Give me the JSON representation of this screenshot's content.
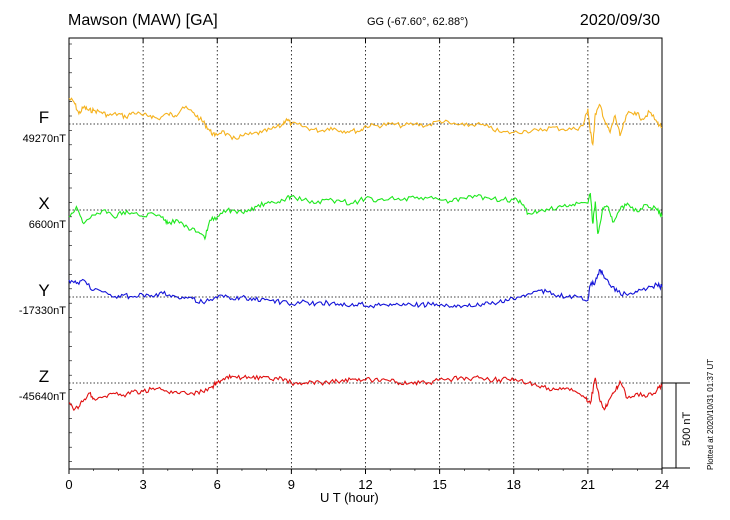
{
  "header": {
    "station": "Mawson (MAW)  [GA]",
    "coords": "GG (-67.60°,  62.88°)",
    "date": "2020/09/30"
  },
  "plotted_note": "Plotted at 2020/10/31 01:37  UT",
  "chart_data": {
    "type": "line",
    "title": "Mawson (MAW)  [GA]",
    "xlabel": "U T (hour)",
    "xlim": [
      0,
      24
    ],
    "xticks": [
      "0",
      "3",
      "6",
      "9",
      "12",
      "15",
      "18",
      "21",
      "24"
    ],
    "grid": true,
    "scale_bar": {
      "value": 500,
      "label": "500 nT"
    },
    "series": [
      {
        "name": "F",
        "baseline_label": "49270nT",
        "baseline": 49270,
        "color": "#f5b21e",
        "points": [
          [
            0,
            49420
          ],
          [
            0.2,
            49400
          ],
          [
            0.4,
            49330
          ],
          [
            0.6,
            49370
          ],
          [
            0.8,
            49350
          ],
          [
            1,
            49350
          ],
          [
            1.3,
            49340
          ],
          [
            1.6,
            49320
          ],
          [
            2,
            49330
          ],
          [
            2.3,
            49310
          ],
          [
            2.6,
            49340
          ],
          [
            3,
            49320
          ],
          [
            3.3,
            49320
          ],
          [
            3.6,
            49300
          ],
          [
            4,
            49330
          ],
          [
            4.3,
            49320
          ],
          [
            4.6,
            49370
          ],
          [
            5,
            49340
          ],
          [
            5.3,
            49300
          ],
          [
            5.5,
            49270
          ],
          [
            5.7,
            49230
          ],
          [
            5.9,
            49200
          ],
          [
            6.2,
            49230
          ],
          [
            6.6,
            49180
          ],
          [
            7,
            49200
          ],
          [
            7.4,
            49210
          ],
          [
            7.8,
            49220
          ],
          [
            8.2,
            49240
          ],
          [
            8.6,
            49260
          ],
          [
            8.8,
            49300
          ],
          [
            9,
            49270
          ],
          [
            9.4,
            49260
          ],
          [
            9.8,
            49240
          ],
          [
            10.2,
            49230
          ],
          [
            10.6,
            49250
          ],
          [
            11,
            49230
          ],
          [
            11.4,
            49230
          ],
          [
            11.8,
            49230
          ],
          [
            12,
            49260
          ],
          [
            12.5,
            49260
          ],
          [
            13,
            49270
          ],
          [
            13.5,
            49260
          ],
          [
            14,
            49270
          ],
          [
            14.5,
            49260
          ],
          [
            15,
            49290
          ],
          [
            15.5,
            49270
          ],
          [
            16,
            49260
          ],
          [
            16.5,
            49270
          ],
          [
            17,
            49250
          ],
          [
            17.5,
            49220
          ],
          [
            18,
            49220
          ],
          [
            18.5,
            49230
          ],
          [
            19,
            49230
          ],
          [
            19.5,
            49250
          ],
          [
            20,
            49240
          ],
          [
            20.5,
            49240
          ],
          [
            20.8,
            49260
          ],
          [
            21,
            49360
          ],
          [
            21.1,
            49220
          ],
          [
            21.2,
            49150
          ],
          [
            21.3,
            49330
          ],
          [
            21.5,
            49380
          ],
          [
            21.7,
            49280
          ],
          [
            21.9,
            49220
          ],
          [
            22.1,
            49320
          ],
          [
            22.3,
            49200
          ],
          [
            22.6,
            49330
          ],
          [
            22.9,
            49340
          ],
          [
            23.2,
            49300
          ],
          [
            23.5,
            49340
          ],
          [
            23.8,
            49280
          ],
          [
            24,
            49250
          ]
        ]
      },
      {
        "name": "X",
        "baseline_label": "6600nT",
        "baseline": 6600,
        "color": "#1ee81e",
        "points": [
          [
            0,
            6560
          ],
          [
            0.3,
            6620
          ],
          [
            0.6,
            6520
          ],
          [
            1,
            6570
          ],
          [
            1.4,
            6600
          ],
          [
            1.8,
            6560
          ],
          [
            2.2,
            6590
          ],
          [
            2.6,
            6580
          ],
          [
            3,
            6560
          ],
          [
            3.4,
            6580
          ],
          [
            3.8,
            6560
          ],
          [
            4,
            6520
          ],
          [
            4.4,
            6540
          ],
          [
            4.8,
            6500
          ],
          [
            5.2,
            6470
          ],
          [
            5.5,
            6430
          ],
          [
            5.7,
            6540
          ],
          [
            6,
            6560
          ],
          [
            6.4,
            6600
          ],
          [
            6.8,
            6580
          ],
          [
            7.2,
            6590
          ],
          [
            7.6,
            6620
          ],
          [
            8,
            6640
          ],
          [
            8.4,
            6640
          ],
          [
            8.8,
            6670
          ],
          [
            9,
            6680
          ],
          [
            9.5,
            6660
          ],
          [
            10,
            6640
          ],
          [
            10.5,
            6660
          ],
          [
            11,
            6650
          ],
          [
            11.5,
            6640
          ],
          [
            12,
            6670
          ],
          [
            12.5,
            6660
          ],
          [
            13,
            6670
          ],
          [
            13.5,
            6660
          ],
          [
            14,
            6670
          ],
          [
            14.5,
            6670
          ],
          [
            15,
            6660
          ],
          [
            15.5,
            6650
          ],
          [
            16,
            6670
          ],
          [
            16.5,
            6680
          ],
          [
            17,
            6670
          ],
          [
            17.5,
            6660
          ],
          [
            18,
            6660
          ],
          [
            18.3,
            6640
          ],
          [
            18.6,
            6580
          ],
          [
            19,
            6590
          ],
          [
            19.4,
            6600
          ],
          [
            19.8,
            6620
          ],
          [
            20.2,
            6620
          ],
          [
            20.6,
            6640
          ],
          [
            21,
            6640
          ],
          [
            21.1,
            6700
          ],
          [
            21.2,
            6520
          ],
          [
            21.3,
            6650
          ],
          [
            21.4,
            6460
          ],
          [
            21.6,
            6610
          ],
          [
            21.8,
            6620
          ],
          [
            22.0,
            6530
          ],
          [
            22.3,
            6600
          ],
          [
            22.6,
            6640
          ],
          [
            23,
            6590
          ],
          [
            23.4,
            6630
          ],
          [
            23.8,
            6600
          ],
          [
            24,
            6560
          ]
        ]
      },
      {
        "name": "Y",
        "baseline_label": "-17330nT",
        "baseline": -17330,
        "color": "#1414d8",
        "points": [
          [
            0,
            -17230
          ],
          [
            0.3,
            -17250
          ],
          [
            0.6,
            -17230
          ],
          [
            1,
            -17290
          ],
          [
            1.4,
            -17300
          ],
          [
            1.8,
            -17330
          ],
          [
            2.2,
            -17320
          ],
          [
            2.6,
            -17330
          ],
          [
            3,
            -17320
          ],
          [
            3.4,
            -17330
          ],
          [
            3.8,
            -17310
          ],
          [
            4.2,
            -17320
          ],
          [
            4.6,
            -17330
          ],
          [
            5,
            -17340
          ],
          [
            5.4,
            -17360
          ],
          [
            5.8,
            -17350
          ],
          [
            6.2,
            -17320
          ],
          [
            6.6,
            -17340
          ],
          [
            7,
            -17330
          ],
          [
            7.4,
            -17350
          ],
          [
            7.8,
            -17340
          ],
          [
            8.2,
            -17350
          ],
          [
            8.6,
            -17360
          ],
          [
            9,
            -17370
          ],
          [
            9.4,
            -17360
          ],
          [
            9.8,
            -17370
          ],
          [
            10.2,
            -17360
          ],
          [
            10.6,
            -17370
          ],
          [
            11,
            -17370
          ],
          [
            11.4,
            -17380
          ],
          [
            11.8,
            -17370
          ],
          [
            12.2,
            -17380
          ],
          [
            12.6,
            -17380
          ],
          [
            13,
            -17370
          ],
          [
            13.4,
            -17380
          ],
          [
            13.8,
            -17370
          ],
          [
            14.2,
            -17380
          ],
          [
            14.6,
            -17370
          ],
          [
            15,
            -17380
          ],
          [
            15.4,
            -17390
          ],
          [
            15.8,
            -17380
          ],
          [
            16.2,
            -17370
          ],
          [
            16.6,
            -17380
          ],
          [
            17,
            -17370
          ],
          [
            17.4,
            -17360
          ],
          [
            17.8,
            -17350
          ],
          [
            18.2,
            -17330
          ],
          [
            18.6,
            -17310
          ],
          [
            19,
            -17290
          ],
          [
            19.4,
            -17300
          ],
          [
            19.8,
            -17320
          ],
          [
            20.2,
            -17330
          ],
          [
            20.6,
            -17330
          ],
          [
            21,
            -17350
          ],
          [
            21.1,
            -17260
          ],
          [
            21.3,
            -17240
          ],
          [
            21.5,
            -17170
          ],
          [
            21.7,
            -17220
          ],
          [
            21.9,
            -17260
          ],
          [
            22.2,
            -17300
          ],
          [
            22.6,
            -17320
          ],
          [
            23,
            -17300
          ],
          [
            23.4,
            -17280
          ],
          [
            23.8,
            -17260
          ],
          [
            24,
            -17270
          ]
        ]
      },
      {
        "name": "Z",
        "baseline_label": "-45640nT",
        "baseline": -45640,
        "color": "#e01010",
        "points": [
          [
            0,
            -45760
          ],
          [
            0.2,
            -45800
          ],
          [
            0.4,
            -45780
          ],
          [
            0.6,
            -45740
          ],
          [
            0.8,
            -45700
          ],
          [
            1,
            -45730
          ],
          [
            1.4,
            -45720
          ],
          [
            1.8,
            -45700
          ],
          [
            2.2,
            -45710
          ],
          [
            2.6,
            -45690
          ],
          [
            3,
            -45690
          ],
          [
            3.4,
            -45670
          ],
          [
            3.8,
            -45680
          ],
          [
            4.2,
            -45700
          ],
          [
            4.6,
            -45690
          ],
          [
            5,
            -45700
          ],
          [
            5.4,
            -45690
          ],
          [
            5.8,
            -45660
          ],
          [
            6,
            -45640
          ],
          [
            6.3,
            -45620
          ],
          [
            6.6,
            -45600
          ],
          [
            7,
            -45610
          ],
          [
            7.4,
            -45610
          ],
          [
            7.8,
            -45610
          ],
          [
            8.2,
            -45620
          ],
          [
            8.6,
            -45610
          ],
          [
            9,
            -45640
          ],
          [
            9.4,
            -45650
          ],
          [
            9.8,
            -45630
          ],
          [
            10.2,
            -45640
          ],
          [
            10.6,
            -45630
          ],
          [
            11,
            -45630
          ],
          [
            11.4,
            -45620
          ],
          [
            11.8,
            -45630
          ],
          [
            12.2,
            -45620
          ],
          [
            12.6,
            -45630
          ],
          [
            13,
            -45630
          ],
          [
            13.4,
            -45640
          ],
          [
            13.8,
            -45640
          ],
          [
            14.2,
            -45640
          ],
          [
            14.6,
            -45640
          ],
          [
            15,
            -45620
          ],
          [
            15.4,
            -45620
          ],
          [
            15.8,
            -45610
          ],
          [
            16.2,
            -45620
          ],
          [
            16.6,
            -45610
          ],
          [
            17,
            -45620
          ],
          [
            17.4,
            -45620
          ],
          [
            17.8,
            -45620
          ],
          [
            18.2,
            -45630
          ],
          [
            18.6,
            -45640
          ],
          [
            19,
            -45660
          ],
          [
            19.4,
            -45670
          ],
          [
            19.8,
            -45680
          ],
          [
            20.2,
            -45670
          ],
          [
            20.6,
            -45700
          ],
          [
            20.9,
            -45730
          ],
          [
            21.1,
            -45760
          ],
          [
            21.3,
            -45610
          ],
          [
            21.5,
            -45750
          ],
          [
            21.7,
            -45790
          ],
          [
            21.9,
            -45730
          ],
          [
            22.1,
            -45690
          ],
          [
            22.3,
            -45630
          ],
          [
            22.6,
            -45730
          ],
          [
            23,
            -45700
          ],
          [
            23.4,
            -45720
          ],
          [
            23.8,
            -45680
          ],
          [
            24,
            -45660
          ]
        ]
      }
    ]
  }
}
